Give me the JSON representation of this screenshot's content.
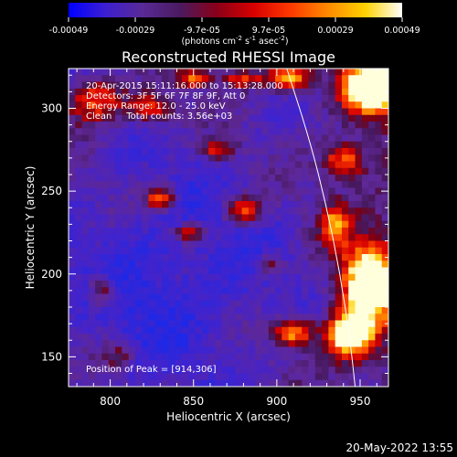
{
  "chart_data": {
    "type": "heatmap",
    "title": "Reconstructed RHESSI Image",
    "xlabel": "Heliocentric X (arcsec)",
    "ylabel": "Heliocentric Y (arcsec)",
    "xlim": [
      775,
      967
    ],
    "ylim": [
      132,
      324
    ],
    "x_ticks": [
      800,
      850,
      900,
      950
    ],
    "y_ticks": [
      150,
      200,
      250,
      300
    ],
    "grid": false,
    "info_lines": [
      "20-Apr-2015 15:11:16.000 to 15:13:28.000",
      "Detectors: 3F 5F 6F 7F 8F 9F, Att 0",
      "Energy Range: 12.0 - 25.0 keV",
      "Clean     Total counts: 3.56e+03"
    ],
    "peak_label": "Position of Peak = [914,306]",
    "peak": [
      914,
      306
    ],
    "limb": {
      "points": [
        [
          906,
          324
        ],
        [
          920,
          280
        ],
        [
          930,
          240
        ],
        [
          938,
          200
        ],
        [
          944,
          160
        ],
        [
          947,
          132
        ]
      ]
    },
    "colorbar": {
      "range": [
        -0.00049,
        0.00049
      ],
      "ticks": [
        "-0.00049",
        "-0.00029",
        "-9.7e-05",
        "9.7e-05",
        "0.00029",
        "0.00049"
      ],
      "unit_text": "(photons cm",
      "unit_exp1": "-2",
      "unit_mid": " s",
      "unit_exp2": "-1",
      "unit_end": " asec",
      "unit_exp3": "-2",
      "unit_close": ")",
      "colors": [
        "#0000ff",
        "#3d1fd0",
        "#5a2a96",
        "#4a1a60",
        "#8a0018",
        "#d80000",
        "#ff3a00",
        "#ff8a00",
        "#ffd200",
        "#ffffff"
      ]
    },
    "blobs": [
      {
        "x": 958,
        "y": 312,
        "sx": 18,
        "sy": 14,
        "amp": 1.0
      },
      {
        "x": 908,
        "y": 318,
        "sx": 12,
        "sy": 8,
        "amp": 0.75
      },
      {
        "x": 940,
        "y": 268,
        "sx": 12,
        "sy": 10,
        "amp": 0.55
      },
      {
        "x": 955,
        "y": 195,
        "sx": 16,
        "sy": 22,
        "amp": 0.85
      },
      {
        "x": 945,
        "y": 163,
        "sx": 14,
        "sy": 14,
        "amp": 0.9
      },
      {
        "x": 910,
        "y": 165,
        "sx": 12,
        "sy": 8,
        "amp": 0.7
      },
      {
        "x": 880,
        "y": 238,
        "sx": 10,
        "sy": 8,
        "amp": 0.55
      },
      {
        "x": 830,
        "y": 245,
        "sx": 9,
        "sy": 7,
        "amp": 0.6
      },
      {
        "x": 848,
        "y": 225,
        "sx": 10,
        "sy": 6,
        "amp": 0.5
      },
      {
        "x": 790,
        "y": 305,
        "sx": 18,
        "sy": 14,
        "amp": 0.55
      },
      {
        "x": 825,
        "y": 300,
        "sx": 14,
        "sy": 10,
        "amp": 0.45
      },
      {
        "x": 865,
        "y": 275,
        "sx": 10,
        "sy": 6,
        "amp": 0.45
      },
      {
        "x": 795,
        "y": 190,
        "sx": 8,
        "sy": 10,
        "amp": 0.45
      },
      {
        "x": 805,
        "y": 150,
        "sx": 10,
        "sy": 8,
        "amp": 0.3
      },
      {
        "x": 935,
        "y": 230,
        "sx": 8,
        "sy": 12,
        "amp": 0.45
      },
      {
        "x": 895,
        "y": 205,
        "sx": 8,
        "sy": 6,
        "amp": 0.35
      },
      {
        "x": 880,
        "y": 318,
        "sx": 14,
        "sy": 6,
        "amp": 0.45
      },
      {
        "x": 850,
        "y": 318,
        "sx": 10,
        "sy": 6,
        "amp": 0.5
      }
    ]
  },
  "footer": {
    "timestamp": "20-May-2022 13:55"
  }
}
